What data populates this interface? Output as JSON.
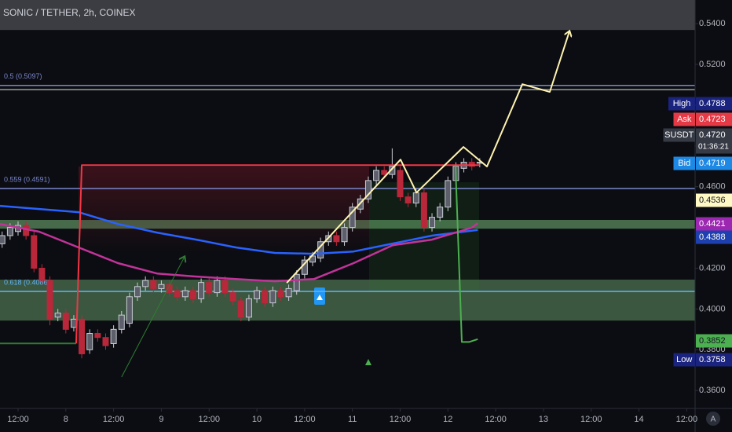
{
  "chart_data": {
    "type": "candlestick",
    "title": "SONIC / TETHER, 2h, COINEX",
    "x": [
      8,
      10,
      12,
      14,
      16,
      18,
      20,
      22,
      24,
      26,
      28,
      30,
      32,
      34,
      36,
      38,
      40,
      42,
      44,
      46,
      48,
      50,
      52,
      54,
      56,
      58,
      60,
      62,
      64,
      66,
      68,
      70,
      72,
      74,
      76,
      78,
      80,
      82,
      84,
      86,
      88,
      90,
      92,
      94,
      96,
      98,
      100,
      102,
      104,
      106,
      108,
      110,
      112,
      114,
      116,
      118,
      120,
      122,
      124,
      126,
      128
    ],
    "open": [
      0.432,
      0.436,
      0.438,
      0.441,
      0.436,
      0.42,
      0.414,
      0.396,
      0.398,
      0.391,
      0.395,
      0.38,
      0.388,
      0.386,
      0.383,
      0.39,
      0.393,
      0.406,
      0.411,
      0.414,
      0.41,
      0.412,
      0.409,
      0.406,
      0.409,
      0.405,
      0.413,
      0.408,
      0.414,
      0.408,
      0.404,
      0.396,
      0.405,
      0.409,
      0.403,
      0.409,
      0.406,
      0.409,
      0.417,
      0.423,
      0.425,
      0.433,
      0.436,
      0.433,
      0.44,
      0.449,
      0.454,
      0.463,
      0.468,
      0.466,
      0.468,
      0.455,
      0.452,
      0.457,
      0.44,
      0.445,
      0.45,
      0.463,
      0.469,
      0.472,
      0.4715
    ],
    "high": [
      0.438,
      0.442,
      0.443,
      0.443,
      0.438,
      0.422,
      0.416,
      0.4,
      0.4,
      0.397,
      0.397,
      0.39,
      0.39,
      0.388,
      0.392,
      0.399,
      0.408,
      0.413,
      0.416,
      0.416,
      0.414,
      0.414,
      0.411,
      0.411,
      0.411,
      0.415,
      0.415,
      0.416,
      0.416,
      0.41,
      0.406,
      0.407,
      0.411,
      0.411,
      0.411,
      0.411,
      0.412,
      0.419,
      0.426,
      0.428,
      0.435,
      0.438,
      0.438,
      0.442,
      0.452,
      0.456,
      0.465,
      0.47,
      0.47,
      0.4788,
      0.47,
      0.457,
      0.459,
      0.459,
      0.447,
      0.452,
      0.465,
      0.472,
      0.474,
      0.474,
      0.474
    ],
    "low": [
      0.43,
      0.434,
      0.436,
      0.434,
      0.418,
      0.412,
      0.392,
      0.394,
      0.388,
      0.389,
      0.3758,
      0.378,
      0.384,
      0.38,
      0.381,
      0.388,
      0.391,
      0.404,
      0.409,
      0.408,
      0.408,
      0.406,
      0.404,
      0.404,
      0.403,
      0.403,
      0.406,
      0.406,
      0.406,
      0.402,
      0.394,
      0.394,
      0.403,
      0.401,
      0.401,
      0.404,
      0.404,
      0.407,
      0.415,
      0.421,
      0.423,
      0.431,
      0.431,
      0.431,
      0.438,
      0.447,
      0.452,
      0.461,
      0.464,
      0.464,
      0.453,
      0.45,
      0.45,
      0.438,
      0.438,
      0.443,
      0.448,
      0.461,
      0.467,
      0.468,
      0.4695
    ],
    "close": [
      0.436,
      0.44,
      0.441,
      0.436,
      0.42,
      0.414,
      0.395,
      0.398,
      0.39,
      0.395,
      0.378,
      0.388,
      0.386,
      0.382,
      0.39,
      0.397,
      0.406,
      0.411,
      0.414,
      0.41,
      0.412,
      0.408,
      0.406,
      0.409,
      0.405,
      0.413,
      0.408,
      0.414,
      0.408,
      0.404,
      0.396,
      0.405,
      0.409,
      0.403,
      0.409,
      0.406,
      0.41,
      0.417,
      0.424,
      0.426,
      0.433,
      0.436,
      0.433,
      0.44,
      0.45,
      0.454,
      0.463,
      0.468,
      0.466,
      0.47,
      0.455,
      0.452,
      0.457,
      0.44,
      0.445,
      0.45,
      0.463,
      0.47,
      0.472,
      0.47,
      0.472
    ],
    "up_color": "#c9ccd4",
    "down_color": "#b8283a",
    "xlim": [
      7.46,
      182.1
    ],
    "ylim": [
      0.3512,
      0.5516
    ],
    "xticks": [
      {
        "value": 12,
        "label": "12:00"
      },
      {
        "value": 24,
        "label": "8"
      },
      {
        "value": 36,
        "label": "12:00"
      },
      {
        "value": 48,
        "label": "9"
      },
      {
        "value": 60,
        "label": "12:00"
      },
      {
        "value": 72,
        "label": "10"
      },
      {
        "value": 84,
        "label": "12:00"
      },
      {
        "value": 96,
        "label": "11"
      },
      {
        "value": 108,
        "label": "12:00"
      },
      {
        "value": 120,
        "label": "12"
      },
      {
        "value": 132,
        "label": "12:00"
      },
      {
        "value": 144,
        "label": "13"
      },
      {
        "value": 156,
        "label": "12:00"
      },
      {
        "value": 168,
        "label": "14"
      },
      {
        "value": 180,
        "label": "12:00"
      }
    ],
    "yticks": [
      {
        "value": 0.36,
        "label": "0.3600"
      },
      {
        "value": 0.38,
        "label": "0.3800"
      },
      {
        "value": 0.4,
        "label": "0.4000"
      },
      {
        "value": 0.42,
        "label": "0.4200"
      },
      {
        "value": 0.44,
        "label": "0.4400"
      },
      {
        "value": 0.46,
        "label": "0.4600"
      },
      {
        "value": 0.48,
        "label": "0.4800"
      },
      {
        "value": 0.5,
        "label": "0.5000"
      },
      {
        "value": 0.52,
        "label": "0.5200"
      },
      {
        "value": 0.54,
        "label": "0.5400"
      }
    ],
    "zones": [
      {
        "from": 0.5369,
        "to": 0.5516,
        "color": "#3c3d42"
      },
      {
        "from": 0.4394,
        "to": 0.4437,
        "color": "rgba(129,199,132,0.5)"
      },
      {
        "from": 0.3943,
        "to": 0.4144,
        "color": "rgba(129,199,132,0.4)"
      }
    ],
    "levels": [
      {
        "value": 0.5097,
        "label": "0.5 (0.5097)",
        "color": "#7986cb"
      },
      {
        "value": 0.5076,
        "color": "#9e9e9e"
      },
      {
        "value": 0.4591,
        "label": "0.559 (0.4591)",
        "color": "#7986cb"
      },
      {
        "value": 0.4086,
        "label": "0.618 (0.4086)",
        "color": "#64b5f6"
      }
    ],
    "overlays": [
      {
        "color": "#2962ff",
        "width": 2.5,
        "x": [
          7.46,
          27.2,
          37.1,
          46.9,
          56.8,
          66.7,
          76.5,
          86.4,
          96.3,
          106.1,
          116.0,
          127.5
        ],
        "values": [
          0.4506,
          0.4475,
          0.4417,
          0.4375,
          0.434,
          0.4302,
          0.4275,
          0.4271,
          0.4282,
          0.4321,
          0.436,
          0.4388
        ]
      },
      {
        "color": "#c2339a",
        "width": 2.5,
        "x": [
          7.46,
          17.3,
          27.2,
          37.1,
          46.9,
          56.8,
          66.7,
          76.5,
          86.4,
          96.3,
          106.1,
          116.0,
          125.9,
          127.5
        ],
        "values": [
          0.4417,
          0.4379,
          0.4302,
          0.4225,
          0.4174,
          0.4159,
          0.4147,
          0.4136,
          0.4147,
          0.4225,
          0.4313,
          0.434,
          0.4398,
          0.4421
        ]
      },
      {
        "color": "#2e7d32",
        "width": 2,
        "x": [
          7.46,
          26.6
        ],
        "values": [
          0.3831,
          0.3831
        ]
      },
      {
        "color": "#f23645",
        "width": 2,
        "x": [
          26.6,
          28.0,
          128
        ],
        "values": [
          0.3831,
          0.4706,
          0.4706
        ]
      },
      {
        "color": "#4caf50",
        "width": 2,
        "x": [
          121.9,
          123.5,
          125.3,
          127.5
        ],
        "values": [
          0.4706,
          0.3838,
          0.3838,
          0.3852
        ]
      },
      {
        "color": "#fff3b0",
        "width": 2,
        "arrow": true,
        "x": [
          79.5,
          108.1,
          112.1,
          123.9,
          129.8,
          138.7,
          145.6,
          150.5
        ],
        "values": [
          0.4128,
          0.4733,
          0.4571,
          0.4795,
          0.4699,
          0.5103,
          0.5065,
          0.5361
        ]
      },
      {
        "color": "#2e7d32",
        "width": 1,
        "arrow": true,
        "x": [
          38.0,
          53.8
        ],
        "values": [
          0.3666,
          0.4255
        ]
      }
    ],
    "price_labels": [
      {
        "tag": "High",
        "price": "0.4788",
        "color": "#1a237e",
        "text": "#ffffff"
      },
      {
        "tag": "Ask",
        "price": "0.4723",
        "color": "#e53945",
        "text": "#ffffff"
      },
      {
        "tag": "SUSDT",
        "price": "0.4720",
        "sub": "01:36:21",
        "color": "#363a45",
        "text": "#ffffff"
      },
      {
        "tag": "Bid",
        "price": "0.4719",
        "color": "#1e88e5",
        "text": "#ffffff"
      },
      {
        "price": "0.4536",
        "color": "#fff9c4",
        "text": "#131722"
      },
      {
        "price": "0.4421",
        "color": "#9c27b0",
        "text": "#ffffff"
      },
      {
        "price": "0.4388",
        "color": "#1e40af",
        "text": "#ffffff"
      },
      {
        "price": "0.3852",
        "color": "#4caf50",
        "text": "#131722"
      },
      {
        "tag": "Low",
        "price": "0.3758",
        "color": "#1a237e",
        "text": "#ffffff"
      }
    ],
    "auto_button": "A"
  }
}
